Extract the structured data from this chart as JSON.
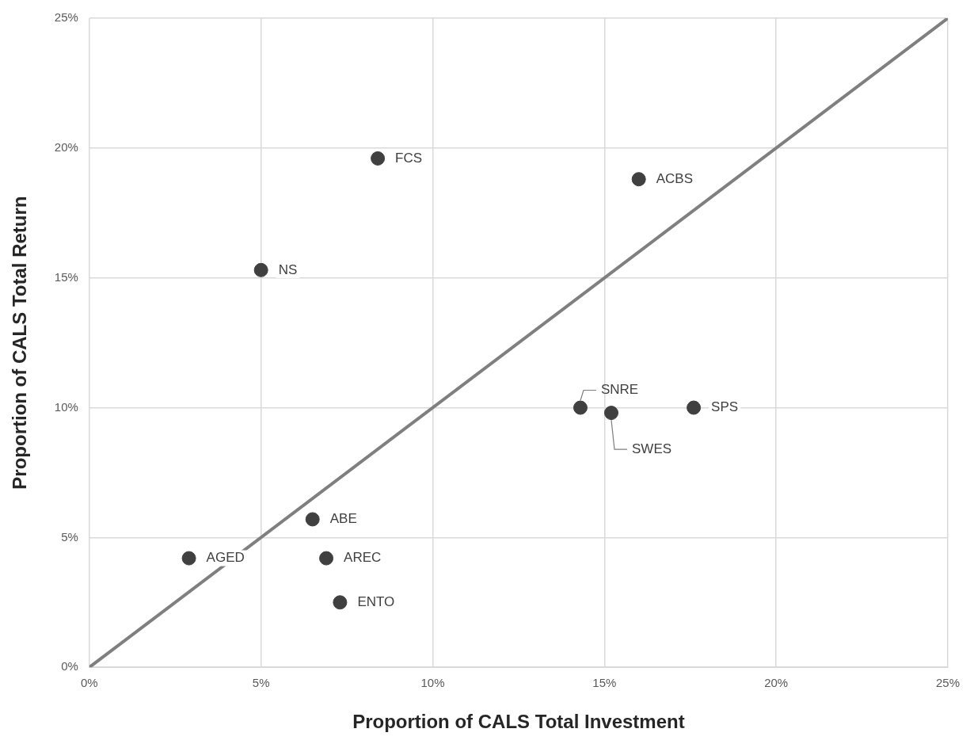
{
  "chart_data": {
    "type": "scatter",
    "xlabel": "Proportion of CALS Total Investment",
    "ylabel": "Proportion of CALS Total Return",
    "xlim": [
      0,
      25
    ],
    "ylim": [
      0,
      25
    ],
    "xticks": [
      {
        "value": 0,
        "label": "0%"
      },
      {
        "value": 5,
        "label": "5%"
      },
      {
        "value": 10,
        "label": "10%"
      },
      {
        "value": 15,
        "label": "15%"
      },
      {
        "value": 20,
        "label": "20%"
      },
      {
        "value": 25,
        "label": "25%"
      }
    ],
    "yticks": [
      {
        "value": 0,
        "label": "0%"
      },
      {
        "value": 5,
        "label": "5%"
      },
      {
        "value": 10,
        "label": "10%"
      },
      {
        "value": 15,
        "label": "15%"
      },
      {
        "value": 20,
        "label": "20%"
      },
      {
        "value": 25,
        "label": "25%"
      }
    ],
    "grid": true,
    "legend": false,
    "series": [
      {
        "type": "line",
        "color": "#7f7f7f",
        "x": [
          0,
          25
        ],
        "values": [
          0,
          25
        ],
        "marker": "none"
      },
      {
        "type": "scatter",
        "color": "#404040",
        "marker": "circle",
        "x": [
          8.4,
          16.0,
          5.0,
          14.3,
          15.2,
          17.6,
          6.5,
          2.9,
          6.9,
          7.3
        ],
        "values": [
          19.6,
          18.8,
          15.3,
          10.0,
          9.8,
          10.0,
          5.7,
          4.2,
          4.2,
          2.5
        ]
      }
    ],
    "annotations": [
      {
        "text": "FCS",
        "x": 8.4,
        "y": 19.6
      },
      {
        "text": "ACBS",
        "x": 16.0,
        "y": 18.8
      },
      {
        "text": "NS",
        "x": 5.0,
        "y": 15.3
      },
      {
        "text": "SNRE",
        "x": 14.3,
        "y": 10.0
      },
      {
        "text": "SWES",
        "x": 15.2,
        "y": 9.8
      },
      {
        "text": "SPS",
        "x": 17.6,
        "y": 10.0
      },
      {
        "text": "ABE",
        "x": 6.5,
        "y": 5.7
      },
      {
        "text": "AGED",
        "x": 2.9,
        "y": 4.2
      },
      {
        "text": "AREC",
        "x": 6.9,
        "y": 4.2
      },
      {
        "text": "ENTO",
        "x": 7.3,
        "y": 2.5
      }
    ]
  }
}
